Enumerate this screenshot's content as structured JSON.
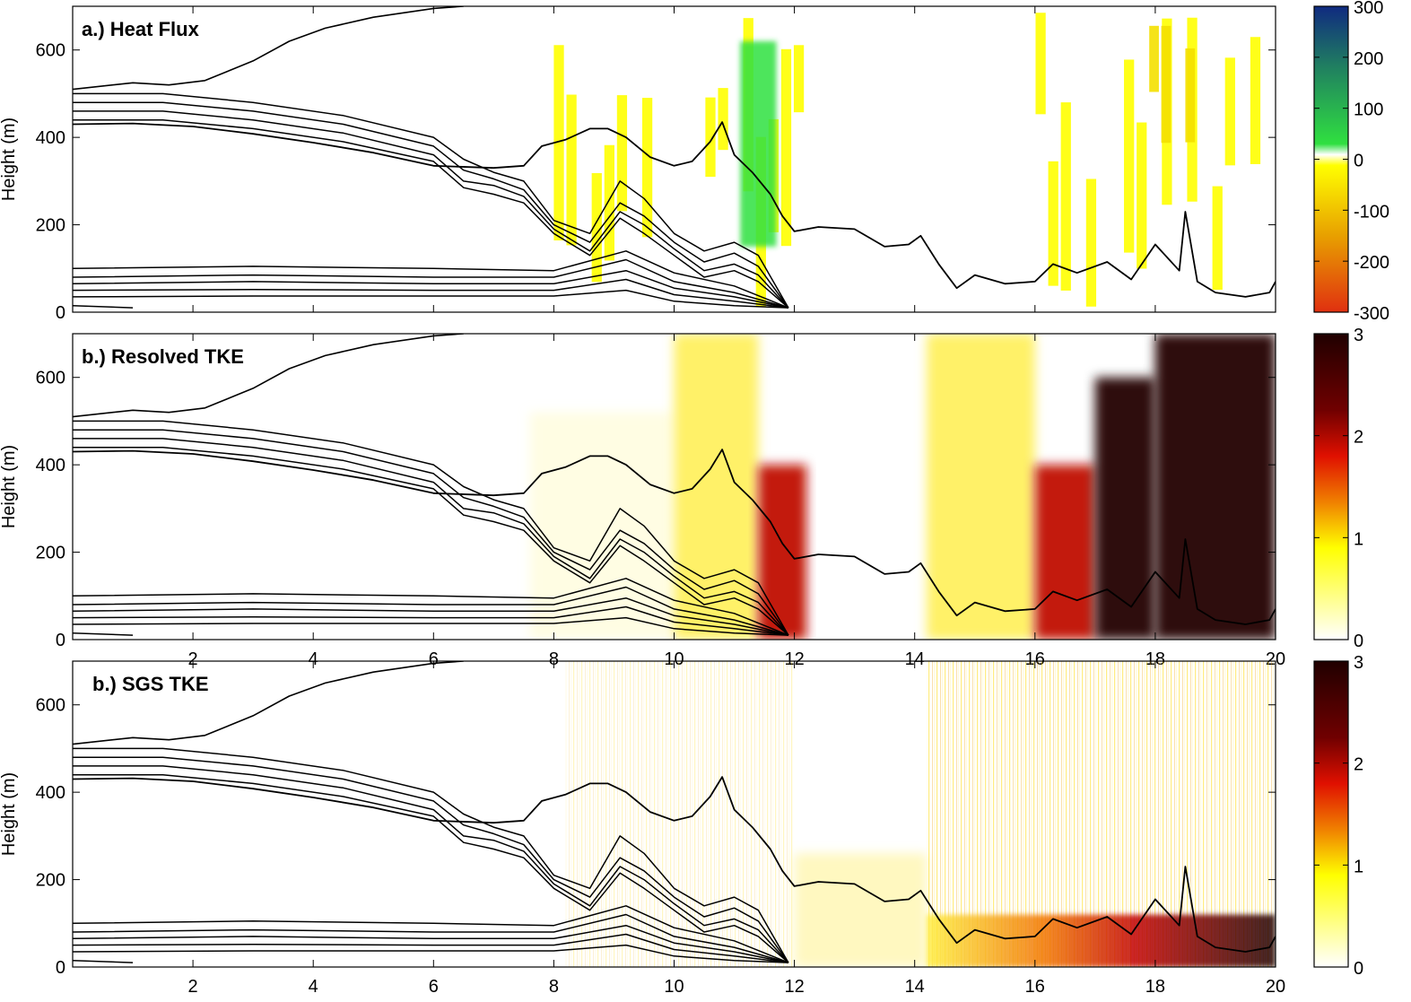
{
  "chart_data": [
    {
      "type": "heatmap",
      "title": "a.) Heat Flux",
      "ylabel": "Height (m)",
      "xlim": [
        0,
        20
      ],
      "ylim": [
        0,
        700
      ],
      "yticks": [
        0,
        200,
        400,
        600
      ],
      "xticks": [],
      "colorbar": {
        "ticks": [
          "300",
          "200",
          "100",
          "0",
          "-100",
          "-200",
          "-300"
        ],
        "range": [
          -300,
          300
        ],
        "colors": {
          "neg_strong": "#e03010",
          "neg_mid": "#f0a000",
          "neg_weak": "#ffff00",
          "zero": "#ffffff",
          "pos_weak": "#20e040",
          "pos_mid": "#208060",
          "pos_strong": "#102a80"
        }
      },
      "regions": [
        {
          "x": [
            8.0,
            12.2
          ],
          "y": [
            0,
            700
          ],
          "value": -30,
          "desc": "scattered weak negative"
        },
        {
          "x": [
            11.1,
            11.7
          ],
          "y": [
            150,
            620
          ],
          "value": 40,
          "desc": "positive column"
        },
        {
          "x": [
            15.8,
            20.0
          ],
          "y": [
            0,
            700
          ],
          "value": -30,
          "desc": "scattered weak negative"
        },
        {
          "x": [
            17.5,
            18.9
          ],
          "y": [
            200,
            700
          ],
          "value": -60,
          "desc": "negative"
        }
      ]
    },
    {
      "type": "heatmap",
      "title": "b.) Resolved TKE",
      "ylabel": "Height (m)",
      "xlim": [
        0,
        20
      ],
      "ylim": [
        0,
        700
      ],
      "yticks": [
        0,
        200,
        400,
        600
      ],
      "xticks": [
        "2",
        "4",
        "6",
        "8",
        "10",
        "12",
        "14",
        "16",
        "18",
        "20"
      ],
      "colorbar": {
        "ticks": [
          "3",
          "2",
          "1",
          "0"
        ],
        "range": [
          0,
          3
        ],
        "colors": {
          "low": "#ffffff",
          "mid_low": "#ffff00",
          "mid": "#f08000",
          "mid_high": "#e01000",
          "high": "#200000"
        }
      },
      "regions": [
        {
          "x": [
            7.6,
            10.0
          ],
          "y": [
            0,
            520
          ],
          "value": 0.2
        },
        {
          "x": [
            10.0,
            11.4
          ],
          "y": [
            0,
            700
          ],
          "value": 0.5
        },
        {
          "x": [
            11.4,
            12.2
          ],
          "y": [
            0,
            400
          ],
          "value": 1.8
        },
        {
          "x": [
            14.2,
            16.0
          ],
          "y": [
            0,
            700
          ],
          "value": 0.9
        },
        {
          "x": [
            16.0,
            17.0
          ],
          "y": [
            0,
            400
          ],
          "value": 2.0
        },
        {
          "x": [
            17.0,
            18.0
          ],
          "y": [
            0,
            600
          ],
          "value": 2.6
        },
        {
          "x": [
            18.0,
            20.0
          ],
          "y": [
            0,
            700
          ],
          "value": 3.0
        }
      ]
    },
    {
      "type": "heatmap",
      "title": "b.) SGS TKE",
      "ylabel": "Height (m)",
      "xlim": [
        0,
        20
      ],
      "ylim": [
        0,
        700
      ],
      "yticks": [
        0,
        200,
        400,
        600
      ],
      "xticks": [
        "2",
        "4",
        "6",
        "8",
        "10",
        "12",
        "14",
        "16",
        "18",
        "20"
      ],
      "colorbar": {
        "ticks": [
          "3",
          "2",
          "1",
          "0"
        ],
        "range": [
          0,
          3
        ]
      },
      "regions": [
        {
          "x": [
            8.2,
            12.0
          ],
          "y": [
            0,
            700
          ],
          "value": 0.2,
          "desc": "streaks"
        },
        {
          "x": [
            12.0,
            14.2
          ],
          "y": [
            0,
            260
          ],
          "value": 0.3
        },
        {
          "x": [
            14.2,
            20.0
          ],
          "y": [
            0,
            700
          ],
          "value": 0.5,
          "desc": "dense streaks"
        },
        {
          "x": [
            14.2,
            20.0
          ],
          "y": [
            0,
            120
          ],
          "value": 2.0,
          "desc": "near-surface high"
        }
      ]
    }
  ],
  "contour_lines": {
    "note": "black contour lines overlaid identically on all three panels",
    "boundary_layer_top": [
      [
        0,
        430
      ],
      [
        1,
        432
      ],
      [
        2,
        425
      ],
      [
        3,
        408
      ],
      [
        4,
        388
      ],
      [
        5,
        365
      ],
      [
        6,
        335
      ],
      [
        7,
        330
      ],
      [
        7.5,
        335
      ],
      [
        7.8,
        380
      ],
      [
        8.2,
        395
      ],
      [
        8.6,
        420
      ],
      [
        8.9,
        420
      ],
      [
        9.2,
        400
      ],
      [
        9.6,
        355
      ],
      [
        10.0,
        335
      ],
      [
        10.3,
        345
      ],
      [
        10.6,
        390
      ],
      [
        10.8,
        435
      ],
      [
        11.0,
        360
      ],
      [
        11.3,
        320
      ],
      [
        11.6,
        270
      ],
      [
        11.8,
        220
      ],
      [
        12.0,
        185
      ],
      [
        12.4,
        195
      ],
      [
        13.0,
        190
      ],
      [
        13.5,
        150
      ],
      [
        13.9,
        155
      ],
      [
        14.1,
        175
      ],
      [
        14.4,
        110
      ],
      [
        14.7,
        55
      ],
      [
        15.0,
        85
      ],
      [
        15.5,
        65
      ],
      [
        16.0,
        70
      ],
      [
        16.3,
        110
      ],
      [
        16.7,
        90
      ],
      [
        17.2,
        115
      ],
      [
        17.6,
        75
      ],
      [
        18.0,
        155
      ],
      [
        18.4,
        95
      ],
      [
        18.5,
        230
      ],
      [
        18.7,
        70
      ],
      [
        19.0,
        45
      ],
      [
        19.5,
        35
      ],
      [
        19.9,
        45
      ],
      [
        20.0,
        70
      ]
    ],
    "upper_curve": [
      [
        0,
        510
      ],
      [
        1,
        525
      ],
      [
        1.6,
        520
      ],
      [
        2.2,
        530
      ],
      [
        3.0,
        575
      ],
      [
        3.6,
        620
      ],
      [
        4.2,
        650
      ],
      [
        5.0,
        675
      ],
      [
        6.0,
        695
      ],
      [
        6.5,
        700
      ]
    ],
    "family_upper": [
      [
        [
          0,
          500
        ],
        [
          1.5,
          500
        ],
        [
          3,
          480
        ],
        [
          4.5,
          450
        ],
        [
          6,
          400
        ],
        [
          6.5,
          350
        ],
        [
          7,
          320
        ],
        [
          7.5,
          300
        ],
        [
          8,
          210
        ],
        [
          8.6,
          180
        ],
        [
          9.1,
          300
        ],
        [
          9.5,
          260
        ],
        [
          10,
          180
        ],
        [
          10.5,
          140
        ],
        [
          11,
          160
        ],
        [
          11.4,
          130
        ],
        [
          11.9,
          10
        ]
      ],
      [
        [
          0,
          480
        ],
        [
          1.5,
          480
        ],
        [
          3,
          460
        ],
        [
          4.5,
          430
        ],
        [
          6,
          380
        ],
        [
          6.5,
          325
        ],
        [
          7,
          305
        ],
        [
          7.5,
          280
        ],
        [
          8,
          200
        ],
        [
          8.6,
          160
        ],
        [
          9.1,
          250
        ],
        [
          9.5,
          220
        ],
        [
          10,
          160
        ],
        [
          10.5,
          115
        ],
        [
          11,
          135
        ],
        [
          11.4,
          105
        ],
        [
          11.9,
          10
        ]
      ],
      [
        [
          0,
          460
        ],
        [
          1.5,
          460
        ],
        [
          3,
          440
        ],
        [
          4.5,
          410
        ],
        [
          6,
          360
        ],
        [
          6.5,
          300
        ],
        [
          7,
          290
        ],
        [
          7.5,
          265
        ],
        [
          8,
          190
        ],
        [
          8.6,
          140
        ],
        [
          9.1,
          230
        ],
        [
          9.5,
          200
        ],
        [
          10,
          145
        ],
        [
          10.5,
          95
        ],
        [
          11,
          110
        ],
        [
          11.4,
          85
        ],
        [
          11.9,
          10
        ]
      ],
      [
        [
          0,
          440
        ],
        [
          1.5,
          440
        ],
        [
          3,
          420
        ],
        [
          4.5,
          390
        ],
        [
          6,
          345
        ],
        [
          6.5,
          285
        ],
        [
          7,
          270
        ],
        [
          7.5,
          250
        ],
        [
          8,
          180
        ],
        [
          8.6,
          130
        ],
        [
          9.1,
          215
        ],
        [
          9.5,
          180
        ],
        [
          10,
          130
        ],
        [
          10.5,
          80
        ],
        [
          11,
          95
        ],
        [
          11.4,
          70
        ],
        [
          11.9,
          10
        ]
      ]
    ],
    "family_lower": [
      [
        [
          0,
          100
        ],
        [
          3,
          105
        ],
        [
          6,
          100
        ],
        [
          8,
          95
        ],
        [
          9.2,
          140
        ],
        [
          10,
          90
        ],
        [
          11,
          60
        ],
        [
          11.9,
          10
        ]
      ],
      [
        [
          0,
          80
        ],
        [
          3,
          85
        ],
        [
          6,
          80
        ],
        [
          8,
          80
        ],
        [
          9.2,
          120
        ],
        [
          10,
          70
        ],
        [
          11,
          45
        ],
        [
          11.9,
          10
        ]
      ],
      [
        [
          0,
          65
        ],
        [
          3,
          70
        ],
        [
          6,
          65
        ],
        [
          8,
          65
        ],
        [
          9.2,
          95
        ],
        [
          10,
          55
        ],
        [
          11,
          35
        ],
        [
          11.9,
          10
        ]
      ],
      [
        [
          0,
          50
        ],
        [
          3,
          52
        ],
        [
          6,
          50
        ],
        [
          8,
          50
        ],
        [
          9.2,
          75
        ],
        [
          10,
          40
        ],
        [
          11,
          25
        ],
        [
          11.9,
          10
        ]
      ],
      [
        [
          0,
          35
        ],
        [
          3,
          37
        ],
        [
          6,
          37
        ],
        [
          8,
          37
        ],
        [
          9.2,
          50
        ],
        [
          10,
          25
        ],
        [
          11,
          15
        ],
        [
          11.9,
          10
        ]
      ],
      [
        [
          0,
          15
        ],
        [
          1,
          10
        ]
      ]
    ]
  },
  "colors": {
    "axis": "#000000",
    "contour": "#000000"
  }
}
